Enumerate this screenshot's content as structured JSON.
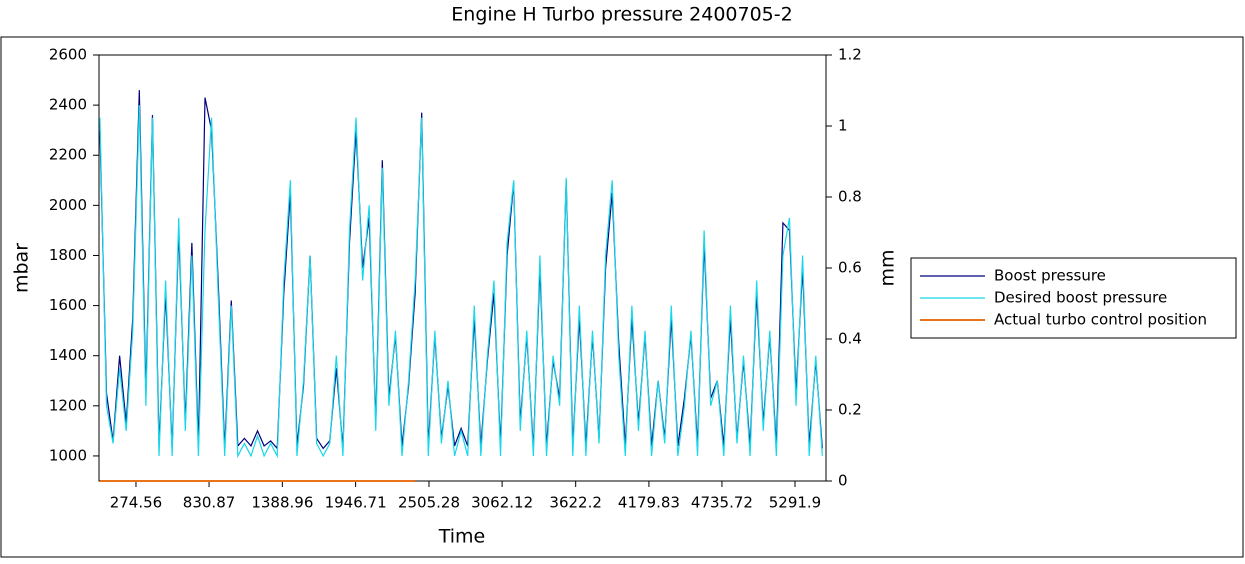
{
  "chart_data": {
    "type": "line",
    "title": "Engine H   Turbo pressure 2400705-2",
    "x_label": "Time",
    "y_label": "mbar",
    "y2_label": "mm",
    "xlim": [
      -7,
      5528
    ],
    "xticks": [
      274.56,
      830.87,
      1388.96,
      1946.71,
      2505.28,
      3062.12,
      3622.2,
      4179.83,
      4735.72,
      5291.9
    ],
    "ylim": [
      900,
      2600
    ],
    "yticks": [
      1000,
      1200,
      1400,
      1600,
      1800,
      2000,
      2200,
      2400,
      2600
    ],
    "y2lim": [
      0,
      1.2
    ],
    "y2ticks": [
      0,
      0.2,
      0.4,
      0.6,
      0.8,
      1,
      1.2
    ],
    "legend": "right",
    "x": [
      0,
      50,
      100,
      150,
      200,
      250,
      300,
      350,
      400,
      450,
      500,
      550,
      600,
      650,
      700,
      750,
      800,
      850,
      900,
      950,
      1000,
      1050,
      1100,
      1150,
      1200,
      1250,
      1300,
      1350,
      1400,
      1450,
      1500,
      1550,
      1600,
      1650,
      1700,
      1750,
      1800,
      1850,
      1900,
      1950,
      2000,
      2050,
      2100,
      2150,
      2200,
      2250,
      2300,
      2350,
      2400,
      2450,
      2500,
      2550,
      2600,
      2650,
      2700,
      2750,
      2800,
      2850,
      2900,
      2950,
      3000,
      3050,
      3100,
      3150,
      3200,
      3250,
      3300,
      3350,
      3400,
      3450,
      3500,
      3550,
      3600,
      3650,
      3700,
      3750,
      3800,
      3850,
      3900,
      3950,
      4000,
      4050,
      4100,
      4150,
      4200,
      4250,
      4300,
      4350,
      4400,
      4450,
      4500,
      4550,
      4600,
      4650,
      4700,
      4750,
      4800,
      4850,
      4900,
      4950,
      5000,
      5050,
      5100,
      5150,
      5200,
      5250,
      5300,
      5350,
      5400,
      5450,
      5500
    ],
    "series": [
      {
        "name": "Boost pressure",
        "color": "#00007a",
        "values": [
          2300,
          1250,
          1060,
          1400,
          1130,
          1550,
          2460,
          1250,
          2360,
          1040,
          1650,
          1030,
          1900,
          1130,
          1850,
          1040,
          2430,
          2300,
          1700,
          1030,
          1620,
          1040,
          1070,
          1040,
          1100,
          1040,
          1060,
          1030,
          1650,
          2050,
          1040,
          1280,
          1800,
          1070,
          1030,
          1060,
          1350,
          1030,
          1850,
          2300,
          1750,
          1950,
          1130,
          2180,
          1230,
          1480,
          1040,
          1280,
          1650,
          2370,
          1040,
          1480,
          1070,
          1280,
          1040,
          1110,
          1040,
          1550,
          1040,
          1380,
          1650,
          1040,
          1800,
          2090,
          1130,
          1480,
          1030,
          1750,
          1040,
          1380,
          1230,
          2100,
          1040,
          1550,
          1040,
          1480,
          1070,
          1750,
          2050,
          1450,
          1040,
          1550,
          1130,
          1480,
          1040,
          1300,
          1070,
          1550,
          1040,
          1230,
          1480,
          1040,
          1850,
          1230,
          1300,
          1040,
          1550,
          1070,
          1380,
          1040,
          1650,
          1130,
          1480,
          1040,
          1930,
          1900,
          1250,
          1750,
          1040,
          1380,
          1030
        ]
      },
      {
        "name": "Desired boost pressure",
        "color": "#17d8e8",
        "values": [
          2350,
          1200,
          1050,
          1350,
          1100,
          1500,
          2400,
          1200,
          2350,
          1000,
          1700,
          1000,
          1950,
          1100,
          1800,
          1000,
          1900,
          2350,
          1650,
          1000,
          1600,
          1000,
          1050,
          1000,
          1080,
          1000,
          1050,
          1000,
          1700,
          2100,
          1000,
          1300,
          1800,
          1050,
          1000,
          1050,
          1400,
          1000,
          1900,
          2350,
          1700,
          2000,
          1100,
          2150,
          1200,
          1500,
          1000,
          1300,
          1700,
          2350,
          1000,
          1500,
          1050,
          1300,
          1000,
          1100,
          1000,
          1600,
          1000,
          1400,
          1700,
          1000,
          1850,
          2100,
          1100,
          1500,
          1000,
          1800,
          1000,
          1400,
          1200,
          2110,
          1000,
          1600,
          1000,
          1500,
          1050,
          1800,
          2100,
          1400,
          1000,
          1600,
          1100,
          1500,
          1000,
          1300,
          1050,
          1600,
          1000,
          1200,
          1500,
          1000,
          1900,
          1200,
          1300,
          1000,
          1600,
          1050,
          1400,
          1000,
          1700,
          1100,
          1500,
          1000,
          1800,
          1950,
          1200,
          1800,
          1000,
          1400,
          1000
        ]
      },
      {
        "name": "Actual turbo control position",
        "color": "#e8731a",
        "axis": "y2",
        "values": [
          0,
          0,
          0,
          0,
          0,
          0,
          0,
          0,
          0,
          0,
          0,
          0,
          0,
          0,
          0,
          0,
          0,
          0,
          0,
          0,
          0,
          0,
          0,
          0,
          0,
          0,
          0,
          0,
          0,
          0,
          0,
          0,
          0,
          0,
          0,
          0,
          0,
          0,
          0,
          0,
          0,
          0,
          0,
          0,
          0,
          0,
          0,
          0,
          0,
          null,
          null,
          null,
          null,
          null,
          null,
          null,
          null,
          null,
          null,
          null,
          null,
          null,
          null,
          null,
          null,
          null,
          null,
          null,
          null,
          null,
          null,
          null,
          null,
          null,
          null,
          null,
          null,
          null,
          null,
          null,
          null,
          null,
          null,
          null,
          null,
          null,
          null,
          null,
          null,
          null,
          null,
          null,
          null,
          null,
          null,
          null,
          null,
          null,
          null,
          null,
          null,
          null,
          null,
          null,
          null,
          null,
          null,
          null,
          null,
          null,
          null
        ]
      }
    ]
  }
}
